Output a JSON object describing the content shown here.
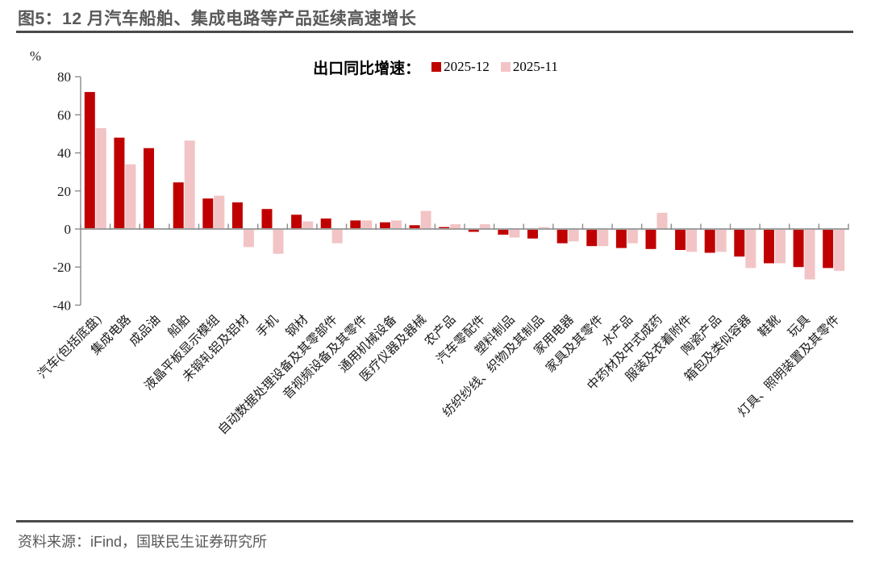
{
  "header": {
    "title": "图5：12 月汽车船舶、集成电路等产品延续高速增长"
  },
  "legend": {
    "prefix": "出口同比增速：",
    "items": [
      {
        "label": "2025-12",
        "color": "#c00000"
      },
      {
        "label": "2025-11",
        "color": "#f2c4c6"
      }
    ]
  },
  "chart_data": {
    "type": "bar",
    "title": "出口同比增速",
    "unit_label": "%",
    "ylabel": "",
    "xlabel": "",
    "ylim": [
      -40,
      80
    ],
    "yticks": [
      80,
      60,
      40,
      20,
      0,
      -20,
      -40
    ],
    "grid": false,
    "legend_position": "top",
    "categories": [
      "汽车(包括底盘)",
      "集成电路",
      "成品油",
      "船舶",
      "液晶平板显示模组",
      "未锻轧铝及铝材",
      "手机",
      "钢材",
      "自动数据处理设备及其零部件",
      "音视频设备及其零件",
      "通用机械设备",
      "医疗仪器及器械",
      "农产品",
      "汽车零配件",
      "塑料制品",
      "纺织纱线、织物及其制品",
      "家用电器",
      "家具及其零件",
      "水产品",
      "中药材及中式成药",
      "服装及衣着附件",
      "陶瓷产品",
      "箱包及类似容器",
      "鞋靴",
      "玩具",
      "灯具、照明装置及其零件"
    ],
    "series": [
      {
        "name": "2025-12",
        "color": "#c00000",
        "values": [
          72,
          48,
          42.5,
          24.5,
          16,
          14,
          10.5,
          7.5,
          5.5,
          4.5,
          3.5,
          2,
          1,
          -1.5,
          -3,
          -5,
          -7.5,
          -9,
          -10,
          -10.5,
          -11,
          -12.5,
          -14.5,
          -18,
          -20,
          -20.5
        ]
      },
      {
        "name": "2025-11",
        "color": "#f2c4c6",
        "values": [
          53,
          34,
          0,
          46.5,
          17.5,
          -9.5,
          -13,
          4,
          -7.5,
          4.5,
          4.5,
          9.5,
          2.5,
          2.5,
          -4.5,
          1,
          -6.5,
          -9,
          -7.5,
          8.5,
          -12,
          -12,
          -20.5,
          -18,
          -26.5,
          -22
        ]
      }
    ]
  },
  "footer": {
    "source": "资料来源：iFind，国联民生证券研究所"
  },
  "colors": {
    "axis": "#8c8c8c",
    "zero_line": "#a0a0a0",
    "tick_text": "#1a1a1a",
    "rule": "#4a4a4a"
  }
}
